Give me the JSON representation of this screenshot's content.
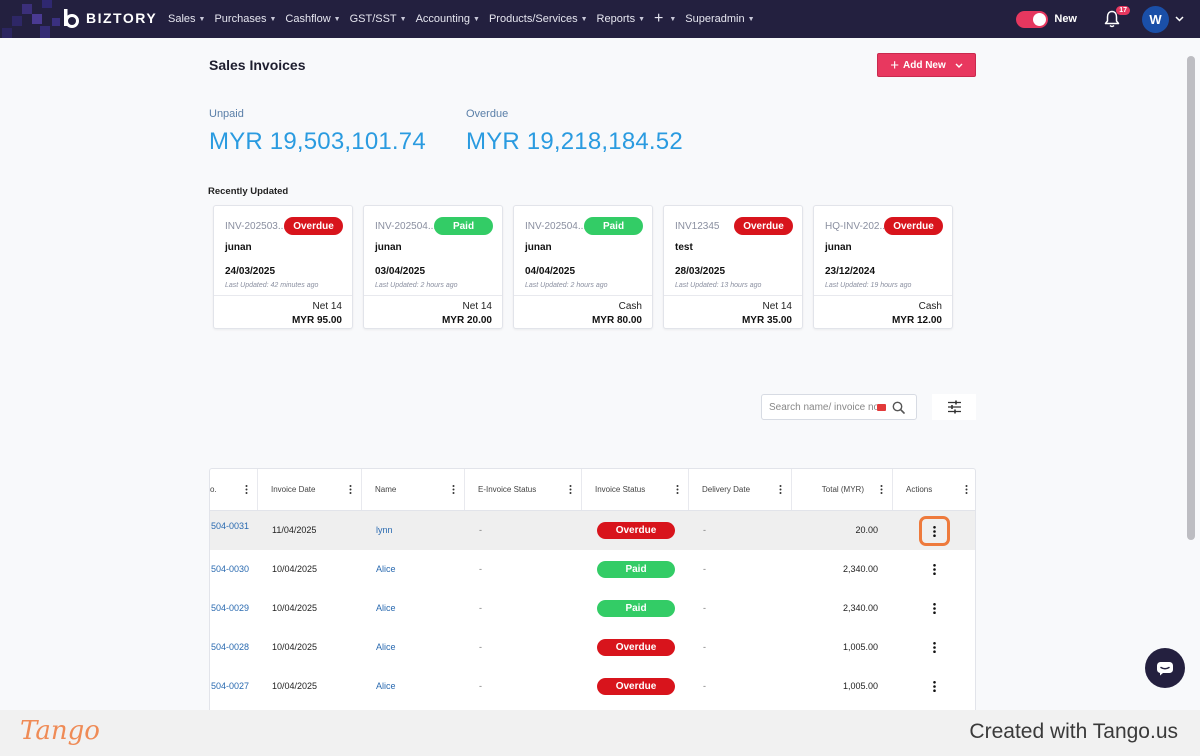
{
  "nav": {
    "brand": "BIZTORY",
    "menu": [
      {
        "label": "Sales",
        "key": "sales"
      },
      {
        "label": "Purchases",
        "key": "purchases"
      },
      {
        "label": "Cashflow",
        "key": "cashflow"
      },
      {
        "label": "GST/SST",
        "key": "gst-sst"
      },
      {
        "label": "Accounting",
        "key": "accounting"
      },
      {
        "label": "Products/Services",
        "key": "products-services"
      },
      {
        "label": "Reports",
        "key": "reports"
      }
    ],
    "superadmin": "Superadmin",
    "toggle_label": "New",
    "notification_count": "17",
    "avatar_initial": "W"
  },
  "page": {
    "title": "Sales Invoices",
    "add_new_label": "Add New"
  },
  "summary": {
    "unpaid_label": "Unpaid",
    "unpaid_value": "MYR 19,503,101.74",
    "overdue_label": "Overdue",
    "overdue_value": "MYR 19,218,184.52"
  },
  "recent": {
    "title": "Recently Updated",
    "cards": [
      {
        "invoice_no": "INV-202503...",
        "status": "Overdue",
        "status_type": "overdue",
        "name": "junan",
        "date": "24/03/2025",
        "updated": "Last Updated: 42 minutes ago",
        "term": "Net 14",
        "amount": "MYR 95.00"
      },
      {
        "invoice_no": "INV-202504...",
        "status": "Paid",
        "status_type": "paid",
        "name": "junan",
        "date": "03/04/2025",
        "updated": "Last Updated: 2 hours ago",
        "term": "Net 14",
        "amount": "MYR 20.00"
      },
      {
        "invoice_no": "INV-202504...",
        "status": "Paid",
        "status_type": "paid",
        "name": "junan",
        "date": "04/04/2025",
        "updated": "Last Updated: 2 hours ago",
        "term": "Cash",
        "amount": "MYR 80.00"
      },
      {
        "invoice_no": "INV12345",
        "status": "Overdue",
        "status_type": "overdue",
        "name": "test",
        "date": "28/03/2025",
        "updated": "Last Updated: 13 hours ago",
        "term": "Net 14",
        "amount": "MYR 35.00"
      },
      {
        "invoice_no": "HQ-INV-202...",
        "status": "Overdue",
        "status_type": "overdue",
        "name": "junan",
        "date": "23/12/2024",
        "updated": "Last Updated: 19 hours ago",
        "term": "Cash",
        "amount": "MYR 12.00"
      }
    ]
  },
  "search": {
    "placeholder": "Search name/ invoice no."
  },
  "table": {
    "headers": {
      "invoice_no": "o.",
      "invoice_date": "Invoice Date",
      "name": "Name",
      "einvoice_status": "E-Invoice Status",
      "invoice_status": "Invoice Status",
      "delivery_date": "Delivery Date",
      "total": "Total (MYR)",
      "actions": "Actions"
    },
    "rows": [
      {
        "invoice_no": "504-0031",
        "invoice_date": "11/04/2025",
        "name": "lynn",
        "einvoice_status": "-",
        "invoice_status": "Overdue",
        "status_type": "overdue",
        "delivery_date": "-",
        "total": "20.00"
      },
      {
        "invoice_no": "504-0030",
        "invoice_date": "10/04/2025",
        "name": "Alice",
        "einvoice_status": "-",
        "invoice_status": "Paid",
        "status_type": "paid",
        "delivery_date": "-",
        "total": "2,340.00"
      },
      {
        "invoice_no": "504-0029",
        "invoice_date": "10/04/2025",
        "name": "Alice",
        "einvoice_status": "-",
        "invoice_status": "Paid",
        "status_type": "paid",
        "delivery_date": "-",
        "total": "2,340.00"
      },
      {
        "invoice_no": "504-0028",
        "invoice_date": "10/04/2025",
        "name": "Alice",
        "einvoice_status": "-",
        "invoice_status": "Overdue",
        "status_type": "overdue",
        "delivery_date": "-",
        "total": "1,005.00"
      },
      {
        "invoice_no": "504-0027",
        "invoice_date": "10/04/2025",
        "name": "Alice",
        "einvoice_status": "-",
        "invoice_status": "Overdue",
        "status_type": "overdue",
        "delivery_date": "-",
        "total": "1,005.00"
      }
    ]
  },
  "footer": {
    "logo": "Tango",
    "credit": "Created with Tango.us"
  },
  "colors": {
    "nav_bg": "#23203f",
    "accent": "#e8385f",
    "overdue": "#d8141c",
    "paid": "#33cc66",
    "stat_value": "#2a9be0",
    "highlight": "#ee7a3c"
  },
  "icons": [
    "biztory-logo-icon",
    "plus-icon",
    "bell-icon",
    "chevron-down-icon",
    "search-icon",
    "filter-sliders-icon",
    "kebab-icon",
    "chat-icon"
  ]
}
